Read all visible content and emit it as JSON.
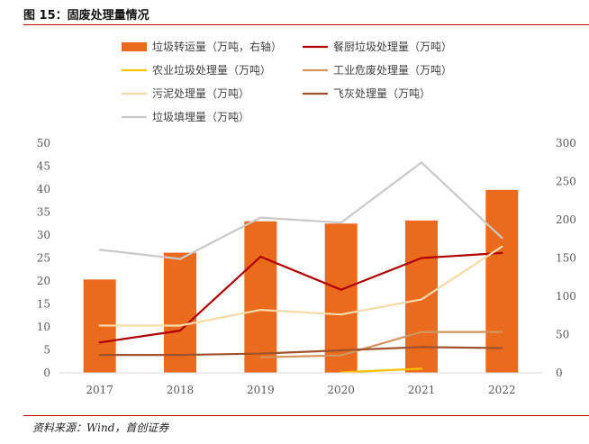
{
  "figure": {
    "title": "图 15：固废处理量情况",
    "source": "资料来源：Wind，首创证券"
  },
  "chart_data": {
    "type": "bar+line",
    "title": "",
    "categories": [
      "2017",
      "2018",
      "2019",
      "2020",
      "2021",
      "2022"
    ],
    "y_left": {
      "min": 0,
      "max": 50,
      "ticks": [
        0,
        5,
        10,
        15,
        20,
        25,
        30,
        35,
        40,
        45,
        50
      ]
    },
    "y_right": {
      "min": 0,
      "max": 300,
      "ticks": [
        0,
        50,
        100,
        150,
        200,
        250,
        300
      ]
    },
    "grid": false,
    "legend_position": "top",
    "series": [
      {
        "name": "垃圾转运量（万吨，右轴）",
        "type": "bar",
        "axis": "right",
        "color": "#ea6a1e",
        "values": [
          122,
          157,
          198,
          195,
          199,
          239
        ]
      },
      {
        "name": "餐厨垃圾处理量（万吨）",
        "type": "line",
        "axis": "left",
        "color": "#b00000",
        "values": [
          6.6,
          9.2,
          25.3,
          18.1,
          25.0,
          26.1
        ]
      },
      {
        "name": "农业垃圾处理量（万吨）",
        "type": "line",
        "axis": "left",
        "color": "#ffc000",
        "values": [
          null,
          null,
          null,
          0.1,
          0.9,
          null
        ]
      },
      {
        "name": "工业危废处理量（万吨）",
        "type": "line",
        "axis": "left",
        "color": "#d4945a",
        "values": [
          null,
          null,
          3.4,
          3.8,
          8.9,
          8.9
        ]
      },
      {
        "name": "污泥处理量（万吨）",
        "type": "line",
        "axis": "left",
        "color": "#f8d9a8",
        "values": [
          10.3,
          10.3,
          13.7,
          12.7,
          16.0,
          27.5
        ]
      },
      {
        "name": "飞灰处理量（万吨）",
        "type": "line",
        "axis": "left",
        "color": "#a0522d",
        "values": [
          3.9,
          3.9,
          4.2,
          4.9,
          5.6,
          5.4
        ]
      },
      {
        "name": "垃圾填埋量（万吨）",
        "type": "line",
        "axis": "left",
        "color": "#c9c9c9",
        "values": [
          26.8,
          24.8,
          33.8,
          32.7,
          45.8,
          29.4
        ]
      }
    ]
  }
}
